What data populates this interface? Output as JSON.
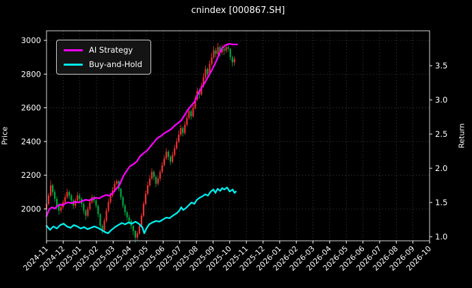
{
  "title": "cnindex [000867.SH]",
  "colors": {
    "background": "#000000",
    "text": "#ffffff",
    "frame": "#d9d9d9",
    "grid": "#9a9a9a",
    "ai_strategy": "#ff00ff",
    "buy_and_hold": "#00efef",
    "candle_up": "#f03030",
    "candle_down": "#00a843"
  },
  "chart_data": {
    "type": "candlestick+line",
    "title": "cnindex [000867.SH]",
    "grid": true,
    "legend_position": "upper-left",
    "x_axis": {
      "unit": "month",
      "tick_rotation_deg": 45,
      "tick_labels": [
        "2024-11",
        "2024-12",
        "2025-01",
        "2025-02",
        "2025-03",
        "2025-04",
        "2025-05",
        "2025-06",
        "2025-07",
        "2025-08",
        "2025-09",
        "2025-10",
        "2025-11",
        "2025-12",
        "2026-01",
        "2026-02",
        "2026-03",
        "2026-04",
        "2026-05",
        "2026-06",
        "2026-07",
        "2026-08",
        "2026-09",
        "2026-10"
      ]
    },
    "y_left": {
      "label": "Price",
      "ticks": [
        2000,
        2200,
        2400,
        2600,
        2800,
        3000
      ],
      "range": [
        1811,
        3057
      ]
    },
    "y_right": {
      "label": "Return",
      "tick_labels": [
        "1.0",
        "1.5",
        "2.0",
        "2.5",
        "3.0",
        "3.5"
      ],
      "range": [
        0.94,
        4.01
      ]
    },
    "candles": {
      "axis": "left",
      "x_step_months": 0.124,
      "ohlc": [
        [
          2000,
          2045,
          1985,
          2030
        ],
        [
          2030,
          2095,
          2020,
          2080
        ],
        [
          2080,
          2170,
          2070,
          2140
        ],
        [
          2140,
          2150,
          2080,
          2100
        ],
        [
          2100,
          2115,
          2040,
          2060
        ],
        [
          2060,
          2075,
          1995,
          2020
        ],
        [
          2020,
          2035,
          1965,
          1990
        ],
        [
          1990,
          2030,
          1975,
          2010
        ],
        [
          2010,
          2055,
          2000,
          2040
        ],
        [
          2040,
          2090,
          2030,
          2070
        ],
        [
          2070,
          2120,
          2060,
          2100
        ],
        [
          2100,
          2110,
          2060,
          2080
        ],
        [
          2080,
          2090,
          2030,
          2050
        ],
        [
          2050,
          2060,
          2000,
          2020
        ],
        [
          2020,
          2065,
          2005,
          2050
        ],
        [
          2050,
          2100,
          2040,
          2080
        ],
        [
          2080,
          2095,
          2045,
          2060
        ],
        [
          2060,
          2070,
          2010,
          2030
        ],
        [
          2030,
          2040,
          1970,
          1990
        ],
        [
          1990,
          2000,
          1935,
          1960
        ],
        [
          1960,
          2015,
          1950,
          2000
        ],
        [
          2000,
          2055,
          1990,
          2040
        ],
        [
          2040,
          2085,
          2030,
          2070
        ],
        [
          2070,
          2080,
          2035,
          2050
        ],
        [
          2050,
          2060,
          2005,
          2020
        ],
        [
          2020,
          2025,
          1950,
          1970
        ],
        [
          1970,
          1975,
          1880,
          1900
        ],
        [
          1900,
          1910,
          1852,
          1870
        ],
        [
          1870,
          1945,
          1860,
          1930
        ],
        [
          1930,
          2005,
          1920,
          1990
        ],
        [
          1990,
          2060,
          1980,
          2040
        ],
        [
          2040,
          2095,
          2030,
          2080
        ],
        [
          2080,
          2130,
          2070,
          2110
        ],
        [
          2110,
          2168,
          2100,
          2150
        ],
        [
          2150,
          2178,
          2140,
          2165
        ],
        [
          2165,
          2170,
          2105,
          2120
        ],
        [
          2120,
          2125,
          2055,
          2070
        ],
        [
          2070,
          2080,
          2005,
          2020
        ],
        [
          2020,
          2030,
          1960,
          1980
        ],
        [
          1980,
          1990,
          1930,
          1950
        ],
        [
          1950,
          1965,
          1910,
          1930
        ],
        [
          1930,
          1940,
          1880,
          1900
        ],
        [
          1900,
          1905,
          1845,
          1870
        ],
        [
          1870,
          1875,
          1798,
          1830
        ],
        [
          1830,
          1870,
          1815,
          1855
        ],
        [
          1855,
          1915,
          1845,
          1900
        ],
        [
          1900,
          1975,
          1890,
          1960
        ],
        [
          1960,
          2045,
          1950,
          2030
        ],
        [
          2030,
          2110,
          2020,
          2090
        ],
        [
          2090,
          2160,
          2080,
          2140
        ],
        [
          2140,
          2200,
          2130,
          2180
        ],
        [
          2180,
          2240,
          2170,
          2220
        ],
        [
          2220,
          2230,
          2170,
          2190
        ],
        [
          2190,
          2200,
          2130,
          2150
        ],
        [
          2150,
          2195,
          2140,
          2180
        ],
        [
          2180,
          2235,
          2165,
          2220
        ],
        [
          2220,
          2280,
          2210,
          2260
        ],
        [
          2260,
          2320,
          2250,
          2300
        ],
        [
          2300,
          2360,
          2290,
          2340
        ],
        [
          2340,
          2350,
          2290,
          2310
        ],
        [
          2310,
          2320,
          2260,
          2280
        ],
        [
          2280,
          2340,
          2270,
          2320
        ],
        [
          2320,
          2380,
          2310,
          2360
        ],
        [
          2360,
          2420,
          2350,
          2400
        ],
        [
          2400,
          2465,
          2390,
          2440
        ],
        [
          2440,
          2500,
          2430,
          2480
        ],
        [
          2480,
          2490,
          2430,
          2450
        ],
        [
          2450,
          2520,
          2440,
          2500
        ],
        [
          2500,
          2560,
          2490,
          2540
        ],
        [
          2540,
          2605,
          2530,
          2580
        ],
        [
          2580,
          2590,
          2530,
          2550
        ],
        [
          2550,
          2620,
          2540,
          2600
        ],
        [
          2600,
          2675,
          2590,
          2650
        ],
        [
          2650,
          2720,
          2640,
          2700
        ],
        [
          2700,
          2715,
          2655,
          2680
        ],
        [
          2680,
          2750,
          2670,
          2730
        ],
        [
          2730,
          2805,
          2720,
          2780
        ],
        [
          2780,
          2850,
          2770,
          2830
        ],
        [
          2830,
          2840,
          2775,
          2800
        ],
        [
          2800,
          2880,
          2790,
          2860
        ],
        [
          2860,
          2925,
          2850,
          2900
        ],
        [
          2900,
          2965,
          2890,
          2940
        ],
        [
          2940,
          2955,
          2900,
          2920
        ],
        [
          2920,
          2985,
          2910,
          2960
        ],
        [
          2960,
          2970,
          2905,
          2930
        ],
        [
          2930,
          2975,
          2915,
          2950
        ],
        [
          2950,
          2970,
          2915,
          2940
        ],
        [
          2940,
          2980,
          2925,
          2960
        ],
        [
          2960,
          2975,
          2930,
          2950
        ],
        [
          2950,
          2955,
          2880,
          2900
        ],
        [
          2900,
          2910,
          2845,
          2870
        ],
        [
          2870,
          2905,
          2850,
          2890
        ]
      ]
    },
    "series": [
      {
        "name": "AI Strategy",
        "axis": "right",
        "color": "#ff00ff",
        "points": [
          [
            0,
            1.3
          ],
          [
            0.16,
            1.4
          ],
          [
            0.33,
            1.43
          ],
          [
            0.49,
            1.41
          ],
          [
            0.66,
            1.45
          ],
          [
            0.82,
            1.47
          ],
          [
            0.99,
            1.46
          ],
          [
            1.15,
            1.49
          ],
          [
            1.31,
            1.5
          ],
          [
            1.52,
            1.49
          ],
          [
            1.72,
            1.51
          ],
          [
            1.93,
            1.5
          ],
          [
            2.14,
            1.52
          ],
          [
            2.34,
            1.54
          ],
          [
            2.55,
            1.53
          ],
          [
            2.75,
            1.55
          ],
          [
            2.96,
            1.57
          ],
          [
            3.16,
            1.56
          ],
          [
            3.37,
            1.59
          ],
          [
            3.57,
            1.61
          ],
          [
            3.78,
            1.6
          ],
          [
            3.98,
            1.64
          ],
          [
            4.19,
            1.7
          ],
          [
            4.39,
            1.76
          ],
          [
            4.6,
            1.88
          ],
          [
            4.8,
            1.96
          ],
          [
            5.01,
            2.03
          ],
          [
            5.22,
            2.06
          ],
          [
            5.42,
            2.1
          ],
          [
            5.63,
            2.18
          ],
          [
            5.83,
            2.22
          ],
          [
            6.04,
            2.26
          ],
          [
            6.24,
            2.32
          ],
          [
            6.45,
            2.38
          ],
          [
            6.65,
            2.44
          ],
          [
            6.86,
            2.47
          ],
          [
            7.06,
            2.51
          ],
          [
            7.27,
            2.54
          ],
          [
            7.47,
            2.57
          ],
          [
            7.68,
            2.62
          ],
          [
            7.89,
            2.66
          ],
          [
            8.09,
            2.7
          ],
          [
            8.3,
            2.78
          ],
          [
            8.5,
            2.86
          ],
          [
            8.71,
            2.92
          ],
          [
            8.91,
            2.98
          ],
          [
            9.12,
            3.1
          ],
          [
            9.32,
            3.18
          ],
          [
            9.53,
            3.26
          ],
          [
            9.73,
            3.35
          ],
          [
            9.94,
            3.44
          ],
          [
            10.14,
            3.54
          ],
          [
            10.35,
            3.66
          ],
          [
            10.55,
            3.76
          ],
          [
            10.76,
            3.8
          ],
          [
            10.96,
            3.82
          ],
          [
            11.17,
            3.81
          ],
          [
            11.45,
            3.81
          ]
        ]
      },
      {
        "name": "Buy-and-Hold",
        "axis": "right",
        "color": "#00efef",
        "points": [
          [
            0,
            1.16
          ],
          [
            0.21,
            1.1
          ],
          [
            0.41,
            1.15
          ],
          [
            0.62,
            1.12
          ],
          [
            0.82,
            1.17
          ],
          [
            1.03,
            1.19
          ],
          [
            1.23,
            1.15
          ],
          [
            1.44,
            1.13
          ],
          [
            1.64,
            1.17
          ],
          [
            1.85,
            1.15
          ],
          [
            2.05,
            1.12
          ],
          [
            2.26,
            1.14
          ],
          [
            2.46,
            1.11
          ],
          [
            2.67,
            1.13
          ],
          [
            2.87,
            1.15
          ],
          [
            3.08,
            1.13
          ],
          [
            3.29,
            1.1
          ],
          [
            3.49,
            1.07
          ],
          [
            3.7,
            1.05
          ],
          [
            3.9,
            1.1
          ],
          [
            4.11,
            1.14
          ],
          [
            4.31,
            1.17
          ],
          [
            4.52,
            1.2
          ],
          [
            4.72,
            1.18
          ],
          [
            4.93,
            1.21
          ],
          [
            5.13,
            1.19
          ],
          [
            5.34,
            1.22
          ],
          [
            5.54,
            1.19
          ],
          [
            5.75,
            1.14
          ],
          [
            5.87,
            1.05
          ],
          [
            6.0,
            1.12
          ],
          [
            6.16,
            1.18
          ],
          [
            6.37,
            1.21
          ],
          [
            6.57,
            1.23
          ],
          [
            6.78,
            1.22
          ],
          [
            6.98,
            1.25
          ],
          [
            7.19,
            1.28
          ],
          [
            7.39,
            1.27
          ],
          [
            7.6,
            1.31
          ],
          [
            7.8,
            1.34
          ],
          [
            7.97,
            1.38
          ],
          [
            8.09,
            1.43
          ],
          [
            8.21,
            1.39
          ],
          [
            8.38,
            1.42
          ],
          [
            8.54,
            1.46
          ],
          [
            8.71,
            1.5
          ],
          [
            8.87,
            1.48
          ],
          [
            9.03,
            1.54
          ],
          [
            9.2,
            1.57
          ],
          [
            9.36,
            1.59
          ],
          [
            9.53,
            1.62
          ],
          [
            9.69,
            1.6
          ],
          [
            9.86,
            1.66
          ],
          [
            10.02,
            1.69
          ],
          [
            10.14,
            1.64
          ],
          [
            10.27,
            1.7
          ],
          [
            10.43,
            1.67
          ],
          [
            10.55,
            1.71
          ],
          [
            10.68,
            1.69
          ],
          [
            10.84,
            1.72
          ],
          [
            11.0,
            1.66
          ],
          [
            11.17,
            1.69
          ],
          [
            11.29,
            1.64
          ],
          [
            11.37,
            1.66
          ]
        ]
      }
    ]
  }
}
